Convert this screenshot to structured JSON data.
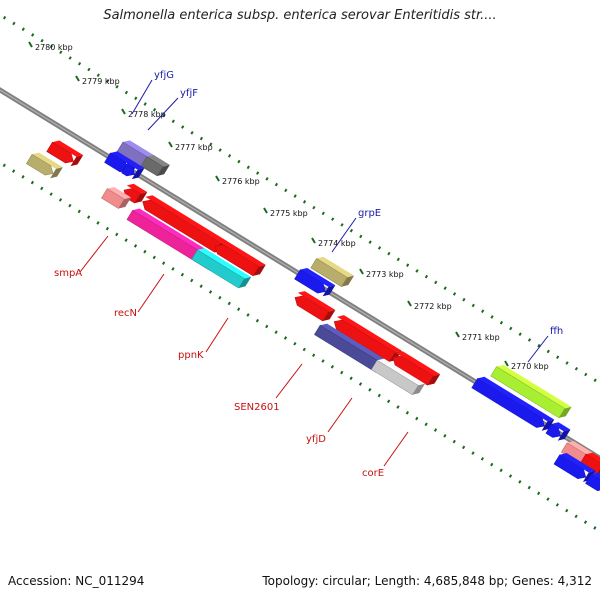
{
  "title": "Salmonella enterica subsp. enterica serovar Enteritidis str....",
  "accession": "Accession: NC_011294",
  "summary": "Topology: circular; Length: 4,685,848 bp; Genes: 4,312",
  "colors": {
    "backbone": "#808080",
    "tick": "#1a6b1a",
    "forward_label": "#1a1aa8",
    "reverse_label": "#c81010"
  },
  "ruler": [
    "2780 kbp",
    "2779 kbp",
    "2778 kbp",
    "2777 kbp",
    "2776 kbp",
    "2775 kbp",
    "2774 kbp",
    "2773 kbp",
    "2772 kbp",
    "2771 kbp",
    "2770 kbp"
  ],
  "gene_labels": [
    {
      "name": "yfjG",
      "strand": "forward"
    },
    {
      "name": "yfjF",
      "strand": "forward"
    },
    {
      "name": "grpE",
      "strand": "forward"
    },
    {
      "name": "ffh",
      "strand": "forward"
    },
    {
      "name": "smpA",
      "strand": "reverse"
    },
    {
      "name": "recN",
      "strand": "reverse"
    },
    {
      "name": "ppnK",
      "strand": "reverse"
    },
    {
      "name": "SEN2601",
      "strand": "reverse"
    },
    {
      "name": "yfjD",
      "strand": "reverse"
    },
    {
      "name": "corE",
      "strand": "reverse"
    }
  ],
  "features": [
    {
      "id": "f-left-red",
      "color": "#ee1111"
    },
    {
      "id": "f-olive-1",
      "color": "#b8ad6a"
    },
    {
      "id": "f-red-small-1",
      "color": "#ee1111"
    },
    {
      "id": "f-yfjG",
      "color": "#8070c0"
    },
    {
      "id": "f-grey-1",
      "color": "#6a6a6a"
    },
    {
      "id": "f-yfjF",
      "color": "#1a1aee"
    },
    {
      "id": "f-blue-small-1",
      "color": "#1a1aee"
    },
    {
      "id": "f-red-small-2",
      "color": "#ee1111"
    },
    {
      "id": "f-smpA",
      "color": "#f08c8c"
    },
    {
      "id": "f-red-long-1",
      "color": "#ee1111"
    },
    {
      "id": "f-recN",
      "color": "#ee2299"
    },
    {
      "id": "f-red-mid-1",
      "color": "#ee1111"
    },
    {
      "id": "f-ppnK",
      "color": "#22cccc"
    },
    {
      "id": "f-grpE",
      "color": "#b8ad6a"
    },
    {
      "id": "f-blue-mid-1",
      "color": "#1a1aee"
    },
    {
      "id": "f-red-small-3",
      "color": "#ee1111"
    },
    {
      "id": "f-SEN2601",
      "color": "#ee1111"
    },
    {
      "id": "f-yfjD",
      "color": "#4a4a99"
    },
    {
      "id": "f-red-mid-2",
      "color": "#ee1111"
    },
    {
      "id": "f-corE",
      "color": "#c8c8c8"
    },
    {
      "id": "f-ffh-lime",
      "color": "#a8ee33"
    },
    {
      "id": "f-ffh",
      "color": "#1a1aee"
    },
    {
      "id": "f-blue-small-2",
      "color": "#1a1aee"
    },
    {
      "id": "f-pink-right",
      "color": "#f08c8c"
    },
    {
      "id": "f-red-right",
      "color": "#ee1111"
    },
    {
      "id": "f-blue-right",
      "color": "#1a1aee"
    },
    {
      "id": "f-blue-right-2",
      "color": "#1a1aee"
    }
  ]
}
